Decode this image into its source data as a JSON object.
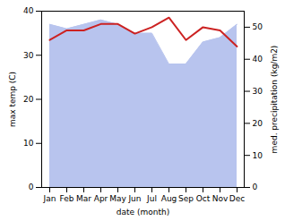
{
  "chart_data": {
    "type": "line",
    "categories": [
      "Jan",
      "Feb",
      "Mar",
      "Apr",
      "May",
      "Jun",
      "Jul",
      "Aug",
      "Sep",
      "Oct",
      "Nov",
      "Dec"
    ],
    "xlabel": "date (month)",
    "ylabel": "max temp (C)",
    "y2label": "med. precipitation (kg/m2)",
    "ylim": [
      0,
      40
    ],
    "yticks": [
      0,
      10,
      20,
      30,
      40
    ],
    "y2lim": [
      0,
      55
    ],
    "y2ticks": [
      0,
      10,
      20,
      30,
      40,
      50
    ],
    "series": [
      {
        "type": "area",
        "color": "#b8c4ee",
        "values": [
          37,
          36,
          37,
          38,
          37,
          35,
          35,
          28,
          28,
          33,
          34,
          37
        ]
      },
      {
        "type": "line",
        "axis": "y2",
        "color": "#cc2222",
        "values": [
          46,
          49,
          49,
          51,
          51,
          48,
          50,
          53,
          46,
          50,
          49,
          44
        ]
      }
    ]
  }
}
